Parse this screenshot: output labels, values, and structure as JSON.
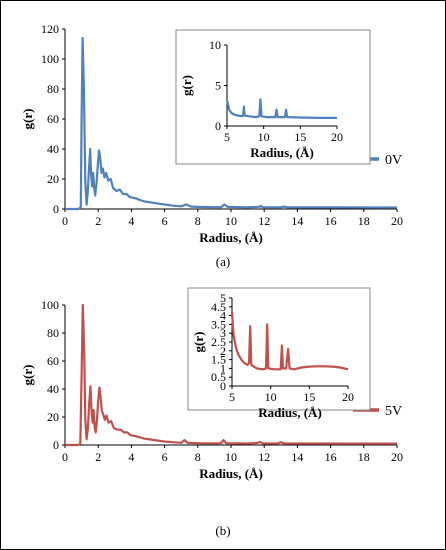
{
  "chart_data": [
    {
      "type": "line",
      "panel_label": "(a)",
      "xlabel": "Radius, (Å)",
      "ylabel": "g(r)",
      "xlim": [
        0,
        20
      ],
      "ylim": [
        0,
        120
      ],
      "xticks": [
        0,
        2,
        4,
        6,
        8,
        10,
        12,
        14,
        16,
        18,
        20
      ],
      "yticks": [
        0,
        20,
        40,
        60,
        80,
        100,
        120
      ],
      "grid": false,
      "legend_position": "right",
      "series": [
        {
          "name": "0V",
          "color": "#4f81bd",
          "points": [
            [
              0,
              0
            ],
            [
              0.8,
              0
            ],
            [
              0.95,
              1
            ],
            [
              1.0,
              60
            ],
            [
              1.06,
              114
            ],
            [
              1.14,
              80
            ],
            [
              1.22,
              18
            ],
            [
              1.3,
              3
            ],
            [
              1.36,
              10
            ],
            [
              1.45,
              28
            ],
            [
              1.52,
              40
            ],
            [
              1.58,
              22
            ],
            [
              1.64,
              15
            ],
            [
              1.7,
              24
            ],
            [
              1.76,
              14
            ],
            [
              1.82,
              9
            ],
            [
              1.9,
              17
            ],
            [
              1.98,
              30
            ],
            [
              2.05,
              39
            ],
            [
              2.12,
              34
            ],
            [
              2.2,
              24
            ],
            [
              2.28,
              27
            ],
            [
              2.38,
              21
            ],
            [
              2.48,
              24
            ],
            [
              2.6,
              19
            ],
            [
              2.75,
              20
            ],
            [
              2.9,
              14
            ],
            [
              3.1,
              12
            ],
            [
              3.3,
              13
            ],
            [
              3.5,
              10
            ],
            [
              3.7,
              10
            ],
            [
              3.9,
              8
            ],
            [
              4.1,
              7.5
            ],
            [
              4.3,
              7
            ],
            [
              4.5,
              6
            ],
            [
              4.8,
              5
            ],
            [
              5.1,
              4.5
            ],
            [
              5.4,
              4
            ],
            [
              5.7,
              3.5
            ],
            [
              6.0,
              3
            ],
            [
              6.5,
              2.2
            ],
            [
              7.0,
              1.8
            ],
            [
              7.3,
              3
            ],
            [
              7.6,
              1.6
            ],
            [
              8.0,
              1.4
            ],
            [
              9.0,
              1.2
            ],
            [
              9.4,
              1.3
            ],
            [
              9.6,
              3
            ],
            [
              9.8,
              1.4
            ],
            [
              11.0,
              1.1
            ],
            [
              11.7,
              1.5
            ],
            [
              11.8,
              2
            ],
            [
              11.9,
              1.2
            ],
            [
              13.0,
              1.1
            ],
            [
              13.2,
              1.6
            ],
            [
              13.4,
              1.1
            ],
            [
              15.0,
              1.05
            ],
            [
              17.0,
              1.05
            ],
            [
              20.0,
              1.0
            ]
          ]
        }
      ],
      "inset": {
        "xlabel": "Radius, (Å)",
        "ylabel": "g(r)",
        "xlim": [
          5,
          20
        ],
        "ylim": [
          0,
          10
        ],
        "xticks": [
          5,
          10,
          15,
          20
        ],
        "yticks": [
          0,
          5,
          10
        ],
        "points": [
          [
            5.0,
            3.2
          ],
          [
            5.3,
            2.0
          ],
          [
            5.6,
            1.6
          ],
          [
            6.0,
            1.4
          ],
          [
            6.5,
            1.3
          ],
          [
            7.0,
            1.2
          ],
          [
            7.2,
            1.3
          ],
          [
            7.3,
            2.4
          ],
          [
            7.4,
            1.3
          ],
          [
            8.0,
            1.2
          ],
          [
            9.0,
            1.1
          ],
          [
            9.4,
            1.2
          ],
          [
            9.55,
            3.3
          ],
          [
            9.7,
            1.2
          ],
          [
            10.5,
            1.1
          ],
          [
            11.6,
            1.1
          ],
          [
            11.75,
            2.0
          ],
          [
            11.9,
            1.1
          ],
          [
            12.9,
            1.1
          ],
          [
            13.05,
            2.0
          ],
          [
            13.2,
            1.1
          ],
          [
            15.0,
            1.05
          ],
          [
            17.5,
            1.0
          ],
          [
            20.0,
            1.0
          ]
        ]
      }
    },
    {
      "type": "line",
      "panel_label": "(b)",
      "xlabel": "Radius, (Å)",
      "ylabel": "g(r)",
      "xlim": [
        0,
        20
      ],
      "ylim": [
        0,
        100
      ],
      "xticks": [
        0,
        2,
        4,
        6,
        8,
        10,
        12,
        14,
        16,
        18,
        20
      ],
      "yticks": [
        0,
        20,
        40,
        60,
        80,
        100
      ],
      "grid": false,
      "legend_position": "right",
      "series": [
        {
          "name": "5V",
          "color": "#c0504d",
          "points": [
            [
              0,
              0
            ],
            [
              0.8,
              0
            ],
            [
              0.92,
              1
            ],
            [
              1.0,
              50
            ],
            [
              1.07,
              100
            ],
            [
              1.15,
              70
            ],
            [
              1.22,
              18
            ],
            [
              1.3,
              4
            ],
            [
              1.38,
              12
            ],
            [
              1.46,
              30
            ],
            [
              1.53,
              42
            ],
            [
              1.6,
              24
            ],
            [
              1.66,
              16
            ],
            [
              1.72,
              25
            ],
            [
              1.78,
              14
            ],
            [
              1.85,
              9
            ],
            [
              1.93,
              18
            ],
            [
              2.0,
              32
            ],
            [
              2.07,
              41
            ],
            [
              2.14,
              35
            ],
            [
              2.22,
              24
            ],
            [
              2.3,
              22
            ],
            [
              2.4,
              18
            ],
            [
              2.5,
              21
            ],
            [
              2.62,
              16
            ],
            [
              2.78,
              17
            ],
            [
              2.95,
              12
            ],
            [
              3.15,
              11
            ],
            [
              3.35,
              11
            ],
            [
              3.55,
              9
            ],
            [
              3.75,
              9
            ],
            [
              3.95,
              7
            ],
            [
              4.2,
              6.5
            ],
            [
              4.5,
              5.5
            ],
            [
              4.8,
              4.5
            ],
            [
              5.1,
              4
            ],
            [
              5.4,
              3.5
            ],
            [
              5.7,
              3
            ],
            [
              6.0,
              2.5
            ],
            [
              6.5,
              2
            ],
            [
              7.0,
              1.6
            ],
            [
              7.2,
              3.5
            ],
            [
              7.4,
              1.5
            ],
            [
              8.0,
              1.3
            ],
            [
              9.0,
              1.2
            ],
            [
              9.4,
              1.3
            ],
            [
              9.55,
              3.5
            ],
            [
              9.7,
              1.3
            ],
            [
              11.0,
              1.1
            ],
            [
              11.6,
              1.5
            ],
            [
              11.75,
              2.2
            ],
            [
              11.9,
              1.2
            ],
            [
              12.8,
              1.1
            ],
            [
              13.0,
              2.0
            ],
            [
              13.2,
              1.1
            ],
            [
              15.0,
              1.05
            ],
            [
              17.0,
              1.0
            ],
            [
              20.0,
              1.0
            ]
          ]
        }
      ],
      "inset": {
        "xlabel": "Radius, (Å)",
        "ylabel": "g(r)",
        "xlim": [
          5,
          20
        ],
        "ylim": [
          0,
          5
        ],
        "xticks": [
          5,
          10,
          15,
          20
        ],
        "yticks": [
          0,
          0.5,
          1,
          1.5,
          2,
          2.5,
          3,
          3.5,
          4,
          4.5,
          5
        ],
        "points": [
          [
            5.0,
            4.2
          ],
          [
            5.2,
            2.9
          ],
          [
            5.5,
            2.2
          ],
          [
            5.8,
            1.8
          ],
          [
            6.2,
            1.5
          ],
          [
            6.6,
            1.3
          ],
          [
            7.0,
            1.2
          ],
          [
            7.2,
            1.3
          ],
          [
            7.35,
            3.4
          ],
          [
            7.5,
            1.2
          ],
          [
            8.2,
            1.0
          ],
          [
            9.0,
            0.95
          ],
          [
            9.4,
            1.0
          ],
          [
            9.55,
            3.5
          ],
          [
            9.7,
            1.0
          ],
          [
            10.5,
            0.95
          ],
          [
            11.3,
            0.95
          ],
          [
            11.45,
            2.3
          ],
          [
            11.6,
            1.0
          ],
          [
            12.0,
            1.0
          ],
          [
            12.25,
            2.1
          ],
          [
            12.45,
            1.0
          ],
          [
            13.0,
            0.95
          ],
          [
            14.0,
            1.05
          ],
          [
            15.0,
            1.1
          ],
          [
            16.0,
            1.12
          ],
          [
            17.0,
            1.12
          ],
          [
            18.0,
            1.1
          ],
          [
            19.0,
            1.05
          ],
          [
            20.0,
            0.95
          ]
        ]
      }
    }
  ]
}
